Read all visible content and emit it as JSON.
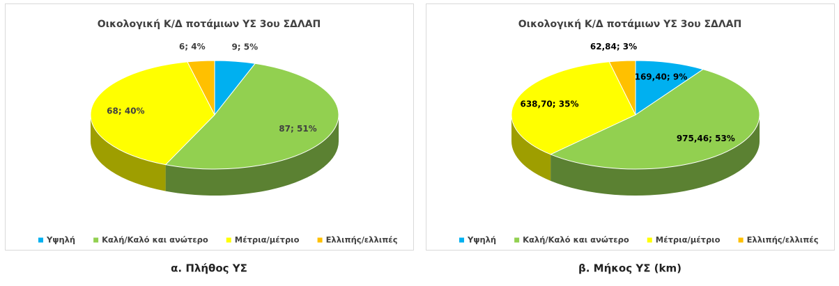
{
  "chart_data": [
    {
      "type": "pie3d",
      "title": "Οικολογική Κ/Δ  ποτάμιων ΥΣ 3ου ΣΔΛΑΠ",
      "caption": "α. Πλήθος ΥΣ",
      "categories": [
        "Υψηλή",
        "Καλή/Καλό και ανώτερο",
        "Μέτρια/μέτριο",
        "Ελλιπής/ελλιπές"
      ],
      "values": [
        9,
        87,
        68,
        6
      ],
      "value_labels": [
        "9; 5%",
        "87; 51%",
        "68; 40%",
        "6; 4%"
      ],
      "colors": [
        "#00b0f0",
        "#92d050",
        "#ffff00",
        "#ffc000"
      ],
      "legend": "bottom"
    },
    {
      "type": "pie3d",
      "title": "Οικολογική Κ/Δ  ποτάμιων ΥΣ 3ου ΣΔΛΑΠ",
      "caption": "β. Μήκος ΥΣ (km)",
      "categories": [
        "Υψηλή",
        "Καλή/Καλό και ανώτερο",
        "Μέτρια/μέτριο",
        "Ελλιπής/ελλιπές"
      ],
      "values": [
        169.4,
        975.46,
        638.7,
        62.84
      ],
      "value_labels": [
        "169,40; 9%",
        "975,46; 53%",
        "638,70; 35%",
        "62,84; 3%"
      ],
      "colors": [
        "#00b0f0",
        "#92d050",
        "#ffff00",
        "#ffc000"
      ],
      "legend": "bottom"
    }
  ]
}
